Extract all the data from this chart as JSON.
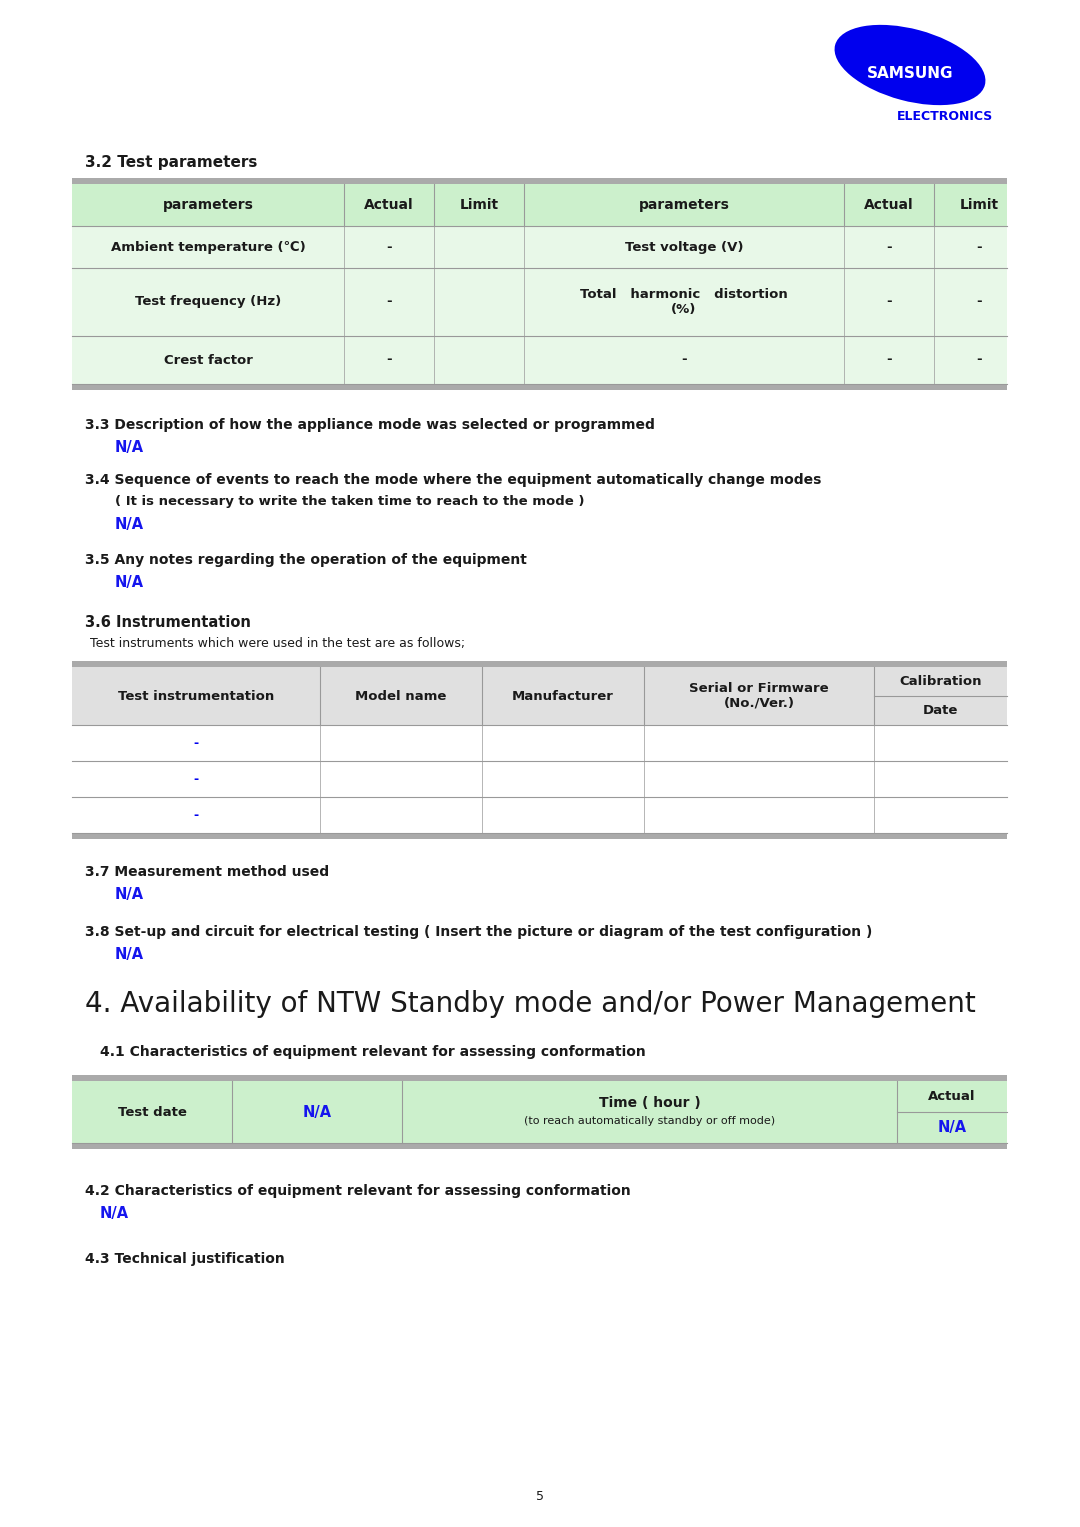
{
  "page_bg": "#ffffff",
  "samsung_blue": "#0000ee",
  "text_black": "#1a1a1a",
  "na_blue": "#1515ee",
  "table_header_bg": "#ccf0cc",
  "table_row_bg": "#e8f8e8",
  "table_border": "#999999",
  "header_gray": "#aaaaaa",
  "light_gray_bg": "#e0e0e0",
  "section_title_3_2": "3.2 Test parameters",
  "table1_headers": [
    "parameters",
    "Actual",
    "Limit",
    "parameters",
    "Actual",
    "Limit"
  ],
  "table1_rows": [
    [
      "Ambient temperature (℃)",
      "-",
      "",
      "Test voltage (V)",
      "-",
      "-"
    ],
    [
      "Test frequency (Hz)",
      "-",
      "",
      "Total   harmonic   distortion\n(%)",
      "-",
      "-"
    ],
    [
      "Crest factor",
      "-",
      "",
      "-",
      "-",
      "-"
    ]
  ],
  "section_3_3_title": "3.3 Description of how the appliance mode was selected or programmed",
  "section_3_3_na": "N/A",
  "section_3_4_title": "3.4 Sequence of events to reach the mode where the equipment automatically change modes",
  "section_3_4_sub": "( It is necessary to write the taken time to reach to the mode )",
  "section_3_4_na": "N/A",
  "section_3_5_title": "3.5 Any notes regarding the operation of the equipment",
  "section_3_5_na": "N/A",
  "section_3_6_title": "3.6 Instrumentation",
  "section_3_6_sub": "Test instruments which were used in the test are as follows;",
  "table2_col_headers_top": [
    "Test instrumentation",
    "Model name",
    "Manufacturer",
    "Serial or Firmware\n(No./Ver.)",
    "Calibration"
  ],
  "table2_col_headers_bot": [
    "",
    "",
    "",
    "",
    "Date"
  ],
  "table2_rows_data": [
    "-",
    "-",
    "-"
  ],
  "section_3_7_title": "3.7 Measurement method used",
  "section_3_7_na": "N/A",
  "section_3_8_title": "3.8 Set-up and circuit for electrical testing ( Insert the picture or diagram of the test configuration )",
  "section_3_8_na": "N/A",
  "section_4_title": "4. Availability of NTW Standby mode and/or Power Management",
  "section_4_1_title": "4.1 Characteristics of equipment relevant for assessing conformation",
  "section_4_2_title": "4.2 Characteristics of equipment relevant for assessing conformation",
  "section_4_2_na": "N/A",
  "section_4_3_title": "4.3 Technical justification",
  "page_number": "5"
}
